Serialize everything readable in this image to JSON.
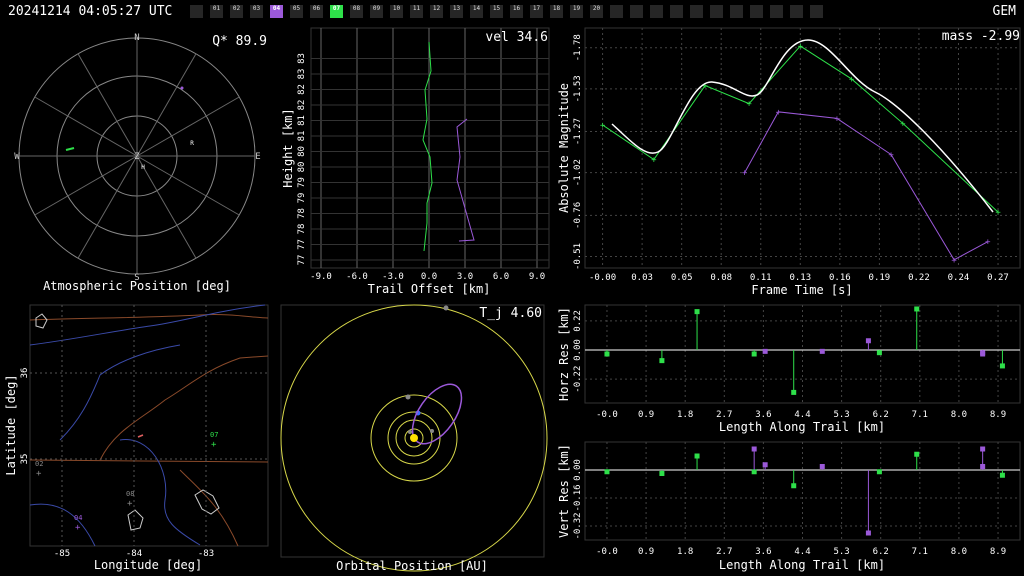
{
  "header": {
    "timestamp": "20241214 04:05:27 UTC",
    "shower": "GEM",
    "stations": [
      {
        "id": "",
        "active": false
      },
      {
        "id": "01",
        "active": false
      },
      {
        "id": "02",
        "active": false
      },
      {
        "id": "03",
        "active": false
      },
      {
        "id": "04",
        "active": true,
        "color": "#9b59d9"
      },
      {
        "id": "05",
        "active": false
      },
      {
        "id": "06",
        "active": false
      },
      {
        "id": "07",
        "active": true,
        "color": "#2ee04a"
      },
      {
        "id": "08",
        "active": false
      },
      {
        "id": "09",
        "active": false
      },
      {
        "id": "10",
        "active": false
      },
      {
        "id": "11",
        "active": false
      },
      {
        "id": "12",
        "active": false
      },
      {
        "id": "13",
        "active": false
      },
      {
        "id": "14",
        "active": false
      },
      {
        "id": "15",
        "active": false
      },
      {
        "id": "16",
        "active": false
      },
      {
        "id": "17",
        "active": false
      },
      {
        "id": "18",
        "active": false
      },
      {
        "id": "19",
        "active": false
      },
      {
        "id": "20",
        "active": false
      },
      {
        "id": "",
        "active": false
      },
      {
        "id": "",
        "active": false
      },
      {
        "id": "",
        "active": false
      },
      {
        "id": "",
        "active": false
      },
      {
        "id": "",
        "active": false
      },
      {
        "id": "",
        "active": false
      },
      {
        "id": "",
        "active": false
      },
      {
        "id": "",
        "active": false
      },
      {
        "id": "",
        "active": false
      },
      {
        "id": "",
        "active": false
      },
      {
        "id": "",
        "active": false
      }
    ]
  },
  "colors": {
    "stationA": "#9b59d9",
    "stationB": "#2ee04a",
    "grid": "#777777",
    "fit": "#ffffff",
    "orbit": "#d8d84a"
  },
  "sky": {
    "title": "Atmospheric Position [deg]",
    "value_label": "Q* 89.9",
    "cardinal": {
      "n": "N",
      "s": "S",
      "e": "E",
      "w": "W",
      "z": "Z"
    },
    "markers": {
      "r": "R",
      "h": "H"
    }
  },
  "trail": {
    "title": "Trail Offset [km]",
    "ylabel": "Height [km]",
    "value_label": "vel 34.6",
    "xticks": [
      "-9.0",
      "-6.0",
      "-3.0",
      "0.0",
      "3.0",
      "6.0",
      "9.0"
    ],
    "yticks": [
      "77",
      "77",
      "78",
      "78",
      "79",
      "79",
      "80",
      "80",
      "81",
      "81",
      "82",
      "82",
      "83",
      "83"
    ]
  },
  "chart_data": [
    {
      "type": "line",
      "title": "Frame Time [s]",
      "xlabel": "Frame Time [s]",
      "ylabel": "Absolute Magnitude",
      "value_label": "mass -2.99",
      "xticks": [
        "-0.00",
        "0.03",
        "0.05",
        "0.08",
        "0.11",
        "0.13",
        "0.16",
        "0.19",
        "0.22",
        "0.24",
        "0.27"
      ],
      "yticks": [
        "-1.78",
        "-1.53",
        "-1.27",
        "-1.02",
        "-0.76",
        "-0.51"
      ],
      "ylim": [
        -1.9,
        -0.44
      ],
      "xlim": [
        -0.012,
        0.285
      ],
      "series": [
        {
          "color": "#2ee04a",
          "x": [
            0.0,
            0.035,
            0.07,
            0.1,
            0.135,
            0.17,
            0.205,
            0.27
          ],
          "y": [
            -1.31,
            -1.1,
            -1.55,
            -1.44,
            -1.79,
            -1.59,
            -1.32,
            -0.78
          ]
        },
        {
          "color": "#9b59d9",
          "x": [
            0.097,
            0.12,
            0.16,
            0.197,
            0.24,
            0.263
          ],
          "y": [
            -1.02,
            -1.39,
            -1.35,
            -1.13,
            -0.49,
            -0.6
          ]
        }
      ]
    },
    {
      "type": "scatter",
      "title": "Length Along Trail [km]",
      "xlabel": "Length Along Trail [km]",
      "ylabel": "Horz Res [km]",
      "xticks": [
        "-0.0",
        "0.9",
        "1.8",
        "2.7",
        "3.6",
        "4.4",
        "5.3",
        "6.2",
        "7.1",
        "8.0",
        "8.9"
      ],
      "yticks": [
        "0.22",
        "0.00",
        "-0.22"
      ],
      "ylim": [
        -0.4,
        0.34
      ],
      "xlim": [
        -0.5,
        9.4
      ],
      "series": [
        {
          "color": "#2ee04a",
          "x": [
            0.0,
            1.25,
            2.05,
            3.35,
            4.25,
            6.2,
            7.05,
            9.0
          ],
          "y": [
            -0.03,
            -0.08,
            0.29,
            -0.03,
            -0.32,
            -0.02,
            0.31,
            -0.12
          ]
        },
        {
          "color": "#9b59d9",
          "x": [
            3.6,
            4.9,
            5.95,
            8.55,
            8.55
          ],
          "y": [
            -0.01,
            -0.01,
            0.07,
            -0.02,
            -0.03
          ]
        }
      ]
    },
    {
      "type": "scatter",
      "title": "Length Along Trail [km]",
      "xlabel": "Length Along Trail [km]",
      "ylabel": "Vert Res [km]",
      "xticks": [
        "-0.0",
        "0.9",
        "1.8",
        "2.7",
        "3.6",
        "4.4",
        "5.3",
        "6.2",
        "7.1",
        "8.0",
        "8.9"
      ],
      "yticks": [
        "0.00",
        "-0.16",
        "-0.32"
      ],
      "ylim": [
        -0.4,
        0.16
      ],
      "xlim": [
        -0.5,
        9.4
      ],
      "series": [
        {
          "color": "#2ee04a",
          "x": [
            0.0,
            1.25,
            2.05,
            3.35,
            4.25,
            6.2,
            7.05,
            9.0
          ],
          "y": [
            -0.01,
            -0.02,
            0.08,
            -0.01,
            -0.09,
            -0.01,
            0.09,
            -0.03
          ]
        },
        {
          "color": "#9b59d9",
          "x": [
            3.35,
            3.6,
            4.9,
            5.95,
            8.55,
            8.55
          ],
          "y": [
            0.12,
            0.03,
            0.02,
            -0.36,
            0.12,
            0.02
          ]
        }
      ]
    }
  ],
  "map": {
    "title": "Longitude [deg]",
    "ylabel": "Latitude [deg]",
    "xticks": [
      "-85",
      "-84",
      "-83"
    ],
    "yticks": [
      "36",
      "35"
    ],
    "stations": [
      {
        "id": "02",
        "color": "#888888"
      },
      {
        "id": "04",
        "color": "#9b59d9"
      },
      {
        "id": "07",
        "color": "#2ee04a"
      },
      {
        "id": "08",
        "color": "#888888"
      }
    ]
  },
  "orbit": {
    "title": "Orbital Position [AU]",
    "value_label": "T_j 4.60"
  }
}
